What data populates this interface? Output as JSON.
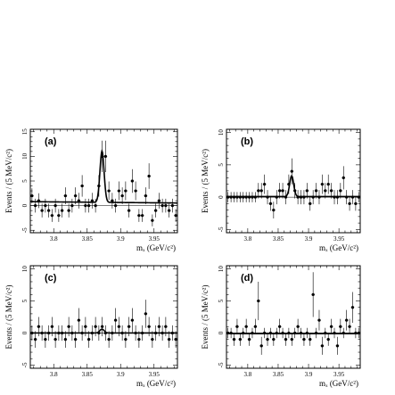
{
  "figure": {
    "ylabel": "Events / (5 MeV/c²)",
    "xlabel": "mₓ (GeV/c²)"
  },
  "chart_data": [
    {
      "type": "scatter",
      "panel": "(a)",
      "xlim": [
        3.765,
        3.985
      ],
      "ylim": [
        -5.5,
        15.5
      ],
      "yticks": [
        -5,
        0,
        5,
        10,
        15
      ],
      "xticks": [
        3.8,
        3.85,
        3.9,
        3.95
      ],
      "xticklabels": [
        "3.8",
        "3.85",
        "3.9",
        "3.95"
      ],
      "series": [
        {
          "kind": "points",
          "x": [
            3.7675,
            3.7725,
            3.7775,
            3.7825,
            3.7875,
            3.7925,
            3.7975,
            3.8025,
            3.8075,
            3.8125,
            3.8175,
            3.8225,
            3.8275,
            3.8325,
            3.8375,
            3.8425,
            3.8475,
            3.8525,
            3.8575,
            3.8625,
            3.8675,
            3.8725,
            3.8775,
            3.8825,
            3.8875,
            3.8925,
            3.8975,
            3.9025,
            3.9075,
            3.9125,
            3.9175,
            3.9225,
            3.9275,
            3.9325,
            3.9375,
            3.9425,
            3.9475,
            3.9525,
            3.9575,
            3.9625,
            3.9675,
            3.9725,
            3.9775,
            3.9825
          ],
          "y": [
            2,
            0,
            1,
            -1,
            0,
            -1,
            -2,
            0,
            -2,
            -1,
            2,
            -1,
            0,
            2,
            1,
            4,
            0,
            0,
            1,
            0,
            4,
            10,
            10,
            3,
            1,
            0,
            3,
            2,
            3,
            -1,
            5,
            3,
            -2,
            -2,
            2,
            6,
            -3,
            -1,
            1,
            0,
            0,
            -1,
            0,
            -2
          ],
          "err": [
            1.5,
            1.4,
            1.5,
            1.4,
            1.4,
            1.4,
            1.3,
            1.4,
            1.3,
            1.4,
            1.7,
            1.4,
            1.4,
            1.7,
            1.6,
            2.2,
            1.4,
            1.4,
            1.6,
            1.4,
            2.2,
            3.2,
            3.2,
            1.9,
            1.6,
            1.4,
            1.9,
            1.7,
            1.9,
            1.4,
            2.4,
            1.9,
            1.3,
            1.3,
            1.7,
            2.6,
            1.2,
            1.4,
            1.6,
            1.4,
            1.4,
            1.4,
            1.4,
            1.3
          ]
        },
        {
          "kind": "fit",
          "background": [
            0.8,
            -0.012
          ],
          "peak": {
            "mean": 3.8722,
            "sigma": 0.0031,
            "amp": 10.4
          }
        }
      ]
    },
    {
      "type": "scatter",
      "panel": "(b)",
      "xlim": [
        3.765,
        3.985
      ],
      "ylim": [
        -5.5,
        10.5
      ],
      "yticks": [
        -5,
        0,
        5,
        10
      ],
      "xticks": [
        3.8,
        3.85,
        3.9,
        3.95
      ],
      "xticklabels": [
        "3.8",
        "3.85",
        "3.9",
        "3.95"
      ],
      "series": [
        {
          "kind": "points",
          "x": [
            3.7675,
            3.7725,
            3.7775,
            3.7825,
            3.7875,
            3.7925,
            3.7975,
            3.8025,
            3.8075,
            3.8125,
            3.8175,
            3.8225,
            3.8275,
            3.8325,
            3.8375,
            3.8425,
            3.8475,
            3.8525,
            3.8575,
            3.8625,
            3.8675,
            3.8725,
            3.8775,
            3.8825,
            3.8875,
            3.8925,
            3.8975,
            3.9025,
            3.9075,
            3.9125,
            3.9175,
            3.9225,
            3.9275,
            3.9325,
            3.9375,
            3.9425,
            3.9475,
            3.9525,
            3.9575,
            3.9625,
            3.9675,
            3.9725,
            3.9775,
            3.9825
          ],
          "y": [
            0,
            0,
            0,
            0,
            0,
            0,
            0,
            0,
            0,
            0,
            1,
            1,
            2,
            0,
            -1,
            -2,
            0,
            1,
            1,
            0,
            2,
            4,
            1,
            0,
            0,
            0,
            1,
            -1,
            0,
            1,
            0,
            2,
            1,
            2,
            1,
            0,
            0,
            1,
            3,
            0,
            -1,
            0,
            -1,
            0
          ],
          "err": [
            0.8,
            0.8,
            0.8,
            0.8,
            0.8,
            0.8,
            0.8,
            0.8,
            0.8,
            0.8,
            1.2,
            1.2,
            1.5,
            1.1,
            1.1,
            1.3,
            1.1,
            1.2,
            1.2,
            1.1,
            1.5,
            2.0,
            1.2,
            1.1,
            1.1,
            1.1,
            1.2,
            1.1,
            1.1,
            1.2,
            1.1,
            1.5,
            1.2,
            1.5,
            1.2,
            1.1,
            1.1,
            1.2,
            1.8,
            1.1,
            1.1,
            1.1,
            1.1,
            0.8
          ]
        },
        {
          "kind": "fit",
          "background": [
            0.1,
            0.0
          ],
          "peak": {
            "mean": 3.8722,
            "sigma": 0.0033,
            "amp": 3.2
          }
        }
      ]
    },
    {
      "type": "scatter",
      "panel": "(c)",
      "xlim": [
        3.765,
        3.985
      ],
      "ylim": [
        -5.5,
        10.5
      ],
      "yticks": [
        -5,
        0,
        5,
        10
      ],
      "xticks": [
        3.8,
        3.85,
        3.9,
        3.95
      ],
      "xticklabels": [
        "3.8",
        "3.85",
        "3.9",
        "3.95"
      ],
      "series": [
        {
          "kind": "points",
          "x": [
            3.7675,
            3.7725,
            3.7775,
            3.7825,
            3.7875,
            3.7925,
            3.7975,
            3.8025,
            3.8075,
            3.8125,
            3.8175,
            3.8225,
            3.8275,
            3.8325,
            3.8375,
            3.8425,
            3.8475,
            3.8525,
            3.8575,
            3.8625,
            3.8675,
            3.8725,
            3.8775,
            3.8825,
            3.8875,
            3.8925,
            3.8975,
            3.9025,
            3.9075,
            3.9125,
            3.9175,
            3.9225,
            3.9275,
            3.9325,
            3.9375,
            3.9425,
            3.9475,
            3.9525,
            3.9575,
            3.9625,
            3.9675,
            3.9725,
            3.9775,
            3.9825
          ],
          "y": [
            0,
            -1,
            1,
            0,
            -1,
            0,
            1,
            -1,
            0,
            0,
            -1,
            1,
            0,
            -1,
            2,
            0,
            1,
            -1,
            0,
            1,
            0,
            1,
            0,
            -1,
            0,
            2,
            1,
            0,
            -1,
            1,
            2,
            0,
            -1,
            0,
            3,
            1,
            -1,
            0,
            1,
            0,
            1,
            -1,
            0,
            -1
          ],
          "err": [
            1.2,
            1.3,
            1.5,
            1.2,
            1.3,
            1.2,
            1.5,
            1.3,
            1.2,
            1.2,
            1.3,
            1.5,
            1.2,
            1.3,
            1.9,
            1.2,
            1.5,
            1.3,
            1.2,
            1.5,
            1.2,
            1.5,
            1.2,
            1.3,
            1.2,
            1.9,
            1.5,
            1.2,
            1.3,
            1.5,
            1.9,
            1.2,
            1.3,
            1.2,
            2.2,
            1.5,
            1.3,
            1.2,
            1.5,
            1.2,
            1.5,
            1.3,
            1.2,
            1.3
          ]
        },
        {
          "kind": "fit",
          "background": [
            0.0,
            0.0
          ],
          "peak": {
            "mean": 3.8722,
            "sigma": 0.0033,
            "amp": 0.6
          }
        }
      ]
    },
    {
      "type": "scatter",
      "panel": "(d)",
      "xlim": [
        3.765,
        3.985
      ],
      "ylim": [
        -5.5,
        10.5
      ],
      "yticks": [
        -5,
        0,
        5,
        10
      ],
      "xticks": [
        3.8,
        3.85,
        3.9,
        3.95
      ],
      "xticklabels": [
        "3.8",
        "3.85",
        "3.9",
        "3.95"
      ],
      "series": [
        {
          "kind": "points",
          "x": [
            3.7675,
            3.7725,
            3.7775,
            3.7825,
            3.7875,
            3.7925,
            3.7975,
            3.8025,
            3.8075,
            3.8125,
            3.8175,
            3.8225,
            3.8275,
            3.8325,
            3.8375,
            3.8425,
            3.8475,
            3.8525,
            3.8575,
            3.8625,
            3.8675,
            3.8725,
            3.8775,
            3.8825,
            3.8875,
            3.8925,
            3.8975,
            3.9025,
            3.9075,
            3.9125,
            3.9175,
            3.9225,
            3.9275,
            3.9325,
            3.9375,
            3.9425,
            3.9475,
            3.9525,
            3.9575,
            3.9625,
            3.9675,
            3.9725,
            3.9775,
            3.9825
          ],
          "y": [
            0,
            0,
            -1,
            1,
            -1,
            0,
            1,
            -1,
            0,
            1,
            5,
            -2,
            0,
            -1,
            0,
            -1,
            0,
            1,
            0,
            -1,
            0,
            -1,
            0,
            1,
            0,
            -1,
            0,
            -1,
            6,
            0,
            2,
            -2,
            0,
            -1,
            1,
            0,
            -2,
            1,
            0,
            2,
            1,
            4,
            0,
            0
          ],
          "err": [
            0.8,
            0.8,
            1.0,
            1.2,
            1.0,
            0.8,
            1.2,
            1.0,
            0.8,
            1.2,
            3.0,
            1.4,
            0.8,
            1.0,
            0.8,
            1.0,
            0.8,
            1.2,
            0.8,
            1.0,
            0.8,
            1.0,
            0.8,
            1.2,
            0.8,
            1.0,
            0.8,
            1.0,
            3.5,
            0.8,
            1.6,
            1.4,
            0.8,
            1.0,
            1.2,
            0.8,
            1.4,
            1.2,
            0.8,
            1.6,
            1.2,
            2.4,
            0.8,
            0.8
          ]
        },
        {
          "kind": "fit",
          "background": [
            -0.1,
            0.0
          ],
          "peak": {
            "mean": 3.8722,
            "sigma": 0.0033,
            "amp": 0.0
          }
        }
      ]
    }
  ]
}
